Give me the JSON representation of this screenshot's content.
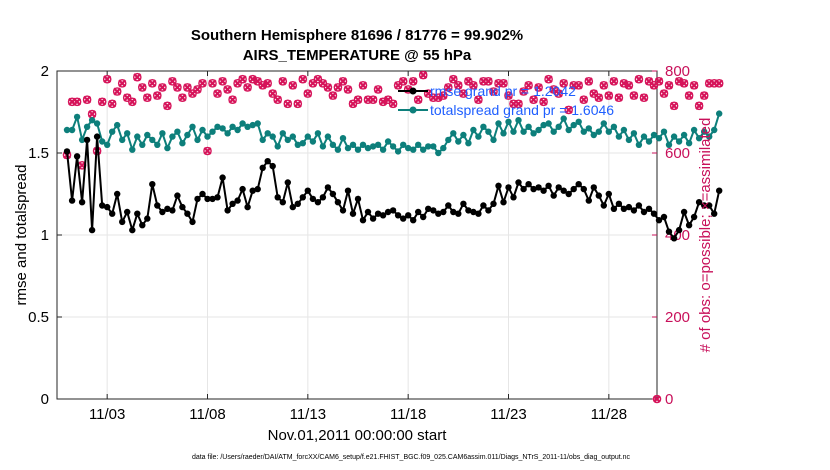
{
  "chart_data": {
    "type": "line",
    "title": "Southern Hemisphere 81696 / 81776 = 99.902%",
    "subtitle": "AIRS_TEMPERATURE @ 55 hPa",
    "xlabel": "Nov.01,2011 00:00:00 start",
    "ylabel": "rmse and totalspread",
    "ylabel_right": "# of obs: o=possible; ×=assimilated",
    "footnote": "data file: /Users/raeder/DAI/ATM_forcXX/CAM6_setup/f.e21.FHIST_BGC.f09_025.CAM6assim.011/Diags_NTrS_2011-11/obs_diag_output.nc",
    "xlim": [
      0.5,
      30.4
    ],
    "ylim": [
      0,
      2
    ],
    "ylim_right": [
      0,
      800
    ],
    "xticks": [
      3,
      8,
      13,
      18,
      23,
      28
    ],
    "xtick_labels": [
      "11/03",
      "11/08",
      "11/13",
      "11/18",
      "11/23",
      "11/28"
    ],
    "yticks": [
      0,
      0.5,
      1,
      1.5,
      2
    ],
    "ytick_labels": [
      "0",
      "0.5",
      "1",
      "1.5",
      "2"
    ],
    "yticks_right": [
      0,
      200,
      400,
      600,
      800
    ],
    "ytick_labels_right": [
      "0",
      "200",
      "400",
      "600",
      "800"
    ],
    "grid": true,
    "legend_position": "top-right",
    "colors": {
      "rmse": "#000000",
      "totalspread": "#0d7f7b",
      "obs_count": "#d6145a",
      "legend_text": "#1f5fff"
    },
    "x_step_days": 0.25,
    "series": [
      {
        "name": "rmse grand pr = 1.2042",
        "axis": "left",
        "values": [
          1.51,
          1.21,
          1.48,
          1.2,
          1.58,
          1.03,
          1.6,
          1.18,
          1.17,
          1.13,
          1.25,
          1.08,
          1.14,
          1.03,
          1.13,
          1.06,
          1.1,
          1.31,
          1.18,
          1.14,
          1.16,
          1.15,
          1.24,
          1.17,
          1.13,
          1.08,
          1.22,
          1.25,
          1.22,
          1.22,
          1.23,
          1.35,
          1.15,
          1.19,
          1.21,
          1.28,
          1.17,
          1.27,
          1.28,
          1.41,
          1.45,
          1.42,
          1.23,
          1.2,
          1.32,
          1.17,
          1.19,
          1.23,
          1.27,
          1.22,
          1.2,
          1.23,
          1.29,
          1.25,
          1.2,
          1.15,
          1.27,
          1.13,
          1.22,
          1.09,
          1.14,
          1.1,
          1.13,
          1.12,
          1.14,
          1.15,
          1.12,
          1.1,
          1.12,
          1.09,
          1.14,
          1.11,
          1.16,
          1.15,
          1.13,
          1.14,
          1.18,
          1.14,
          1.13,
          1.19,
          1.15,
          1.14,
          1.13,
          1.18,
          1.15,
          1.19,
          1.3,
          1.2,
          1.29,
          1.23,
          1.32,
          1.28,
          1.31,
          1.28,
          1.29,
          1.27,
          1.3,
          1.24,
          1.29,
          1.27,
          1.25,
          1.28,
          1.31,
          1.28,
          1.21,
          1.29,
          1.24,
          1.18,
          1.25,
          1.16,
          1.19,
          1.16,
          1.17,
          1.15,
          1.18,
          1.14,
          1.16,
          1.13,
          1.09,
          1.11,
          1.02,
          0.98,
          1.03,
          1.14,
          1.06,
          1.11,
          1.2,
          1.18,
          1.18,
          1.13,
          1.27
        ]
      },
      {
        "name": "totalspread grand pr = 1.6046",
        "axis": "left",
        "values": [
          1.64,
          1.64,
          1.72,
          1.58,
          1.66,
          1.7,
          1.68,
          1.57,
          1.55,
          1.63,
          1.67,
          1.58,
          1.62,
          1.52,
          1.6,
          1.55,
          1.61,
          1.58,
          1.55,
          1.62,
          1.53,
          1.6,
          1.63,
          1.56,
          1.61,
          1.66,
          1.58,
          1.64,
          1.6,
          1.63,
          1.66,
          1.65,
          1.62,
          1.66,
          1.64,
          1.68,
          1.66,
          1.67,
          1.68,
          1.58,
          1.62,
          1.6,
          1.54,
          1.62,
          1.58,
          1.6,
          1.55,
          1.56,
          1.6,
          1.57,
          1.62,
          1.54,
          1.6,
          1.55,
          1.52,
          1.59,
          1.53,
          1.55,
          1.52,
          1.55,
          1.53,
          1.54,
          1.55,
          1.52,
          1.57,
          1.54,
          1.51,
          1.55,
          1.53,
          1.52,
          1.55,
          1.52,
          1.54,
          1.54,
          1.5,
          1.53,
          1.58,
          1.62,
          1.57,
          1.61,
          1.56,
          1.64,
          1.6,
          1.66,
          1.63,
          1.58,
          1.68,
          1.62,
          1.69,
          1.63,
          1.7,
          1.63,
          1.66,
          1.62,
          1.64,
          1.67,
          1.68,
          1.63,
          1.66,
          1.71,
          1.64,
          1.67,
          1.69,
          1.63,
          1.65,
          1.61,
          1.63,
          1.68,
          1.63,
          1.66,
          1.6,
          1.64,
          1.58,
          1.62,
          1.55,
          1.6,
          1.57,
          1.61,
          1.59,
          1.63,
          1.55,
          1.6,
          1.57,
          1.61,
          1.56,
          1.64,
          1.59,
          1.63,
          1.6,
          1.64,
          1.74
        ]
      },
      {
        "name": "possible",
        "axis": "right",
        "marker": "o",
        "values": [
          595,
          725,
          725,
          570,
          730,
          695,
          605,
          725,
          780,
          720,
          750,
          770,
          735,
          725,
          785,
          760,
          735,
          770,
          740,
          760,
          715,
          775,
          760,
          735,
          760,
          745,
          755,
          770,
          605,
          770,
          745,
          775,
          755,
          730,
          770,
          780,
          760,
          780,
          775,
          765,
          770,
          745,
          730,
          775,
          720,
          765,
          720,
          780,
          745,
          770,
          780,
          770,
          760,
          740,
          760,
          775,
          755,
          720,
          730,
          765,
          730,
          730,
          755,
          725,
          730,
          720,
          765,
          775,
          755,
          775,
          730,
          790,
          745,
          735,
          735,
          740,
          760,
          780,
          765,
          745,
          775,
          765,
          730,
          775,
          775,
          750,
          770,
          770,
          740,
          720,
          720,
          750,
          765,
          730,
          760,
          725,
          780,
          755,
          745,
          770,
          705,
          765,
          765,
          730,
          775,
          745,
          735,
          765,
          740,
          775,
          735,
          770,
          765,
          740,
          780,
          735,
          775,
          765,
          775,
          745,
          765,
          715,
          775,
          770,
          740,
          765,
          715,
          740,
          770,
          770,
          770
        ]
      },
      {
        "name": "assimilated",
        "axis": "right",
        "marker": "×",
        "values": [
          595,
          725,
          725,
          570,
          730,
          695,
          605,
          725,
          780,
          720,
          750,
          770,
          735,
          725,
          785,
          760,
          735,
          770,
          740,
          760,
          715,
          775,
          760,
          735,
          760,
          745,
          755,
          770,
          605,
          770,
          745,
          775,
          755,
          730,
          770,
          780,
          760,
          780,
          775,
          765,
          770,
          745,
          730,
          775,
          720,
          765,
          720,
          780,
          745,
          770,
          780,
          770,
          760,
          740,
          760,
          775,
          755,
          720,
          730,
          765,
          730,
          730,
          755,
          725,
          730,
          720,
          765,
          775,
          755,
          775,
          730,
          790,
          745,
          735,
          735,
          740,
          760,
          780,
          765,
          745,
          775,
          765,
          730,
          775,
          775,
          750,
          770,
          770,
          740,
          720,
          720,
          750,
          765,
          730,
          760,
          725,
          780,
          755,
          745,
          770,
          705,
          765,
          765,
          730,
          775,
          745,
          735,
          765,
          740,
          775,
          735,
          770,
          765,
          740,
          780,
          735,
          775,
          765,
          775,
          745,
          765,
          715,
          775,
          770,
          740,
          765,
          715,
          740,
          770,
          770,
          770
        ]
      }
    ]
  }
}
